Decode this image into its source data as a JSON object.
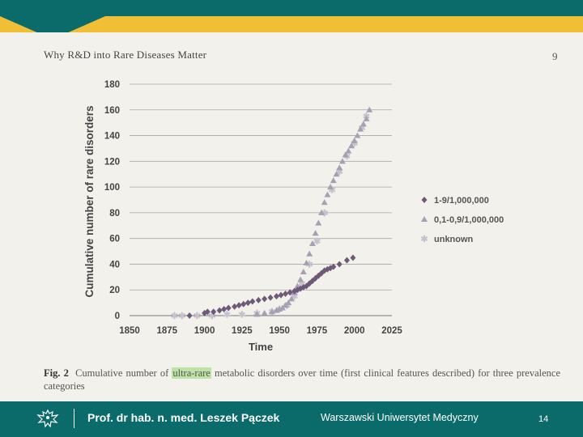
{
  "slide": {
    "colors": {
      "teal": "#0b6a6a",
      "gold": "#f0bf36",
      "paper": "#f2f1ec"
    }
  },
  "page": {
    "title": "Why R&D into Rare Diseases Matter",
    "number": "9"
  },
  "caption": {
    "label": "Fig. 2",
    "before": "Cumulative number of ",
    "highlight": "ultra-rare",
    "after": " metabolic disorders over time (first clinical features described) for three prevalence categories"
  },
  "footer": {
    "name": "Prof. dr hab. n. med. Leszek Pączek",
    "institution": "Warszawski Uniwersytet Medyczny",
    "page_number": "14",
    "logo_icon": "eagle-emblem-icon"
  },
  "chart_data": {
    "type": "scatter",
    "title": "",
    "xlabel": "Time",
    "ylabel": "Cumulative number of rare disorders",
    "xlim": [
      1850,
      2025
    ],
    "ylim": [
      0,
      180
    ],
    "xticks": [
      1850,
      1875,
      1900,
      1925,
      1950,
      1975,
      2000,
      2025
    ],
    "yticks": [
      0,
      20,
      40,
      60,
      80,
      100,
      120,
      140,
      160,
      180
    ],
    "grid": "horizontal",
    "legend_position": "right",
    "series": [
      {
        "name": "1-9/1,000,000",
        "marker": "diamond",
        "color": "#6e5a78",
        "x": [
          1890,
          1900,
          1902,
          1906,
          1910,
          1913,
          1916,
          1920,
          1923,
          1926,
          1929,
          1932,
          1936,
          1940,
          1944,
          1948,
          1951,
          1954,
          1957,
          1960,
          1962,
          1964,
          1966,
          1968,
          1970,
          1972,
          1974,
          1976,
          1978,
          1980,
          1982,
          1984,
          1986,
          1990,
          1995,
          1999
        ],
        "y": [
          0,
          2,
          3,
          3,
          4,
          5,
          6,
          7,
          8,
          9,
          10,
          11,
          12,
          13,
          14,
          15,
          16,
          17,
          18,
          19,
          20,
          21,
          22,
          23,
          25,
          27,
          29,
          31,
          33,
          35,
          36,
          37,
          38,
          40,
          43,
          45
        ]
      },
      {
        "name": "0,1-0,9/1,000,000",
        "marker": "triangle",
        "color": "#a6a0b2",
        "x": [
          1935,
          1940,
          1945,
          1948,
          1950,
          1952,
          1954,
          1956,
          1958,
          1960,
          1962,
          1964,
          1966,
          1968,
          1970,
          1972,
          1974,
          1976,
          1978,
          1980,
          1982,
          1984,
          1986,
          1988,
          1990,
          1992,
          1994,
          1996,
          1998,
          2000,
          2002,
          2004,
          2006,
          2008,
          2010
        ],
        "y": [
          1,
          2,
          3,
          4,
          5,
          6,
          8,
          10,
          13,
          18,
          23,
          28,
          34,
          41,
          48,
          56,
          64,
          72,
          80,
          88,
          94,
          100,
          105,
          110,
          115,
          120,
          125,
          128,
          132,
          136,
          140,
          145,
          149,
          153,
          160
        ]
      },
      {
        "name": "unknown",
        "marker": "star",
        "color": "#c8c0cc",
        "x": [
          1880,
          1885,
          1895,
          1905,
          1915,
          1925,
          1935,
          1945,
          1950,
          1955,
          1960,
          1965,
          1970,
          1975,
          1980,
          1985,
          1990,
          1995,
          2000,
          2005,
          2008
        ],
        "y": [
          0,
          0,
          0,
          0,
          1,
          1,
          2,
          3,
          5,
          8,
          15,
          25,
          40,
          58,
          80,
          98,
          112,
          124,
          134,
          146,
          155
        ]
      }
    ]
  }
}
